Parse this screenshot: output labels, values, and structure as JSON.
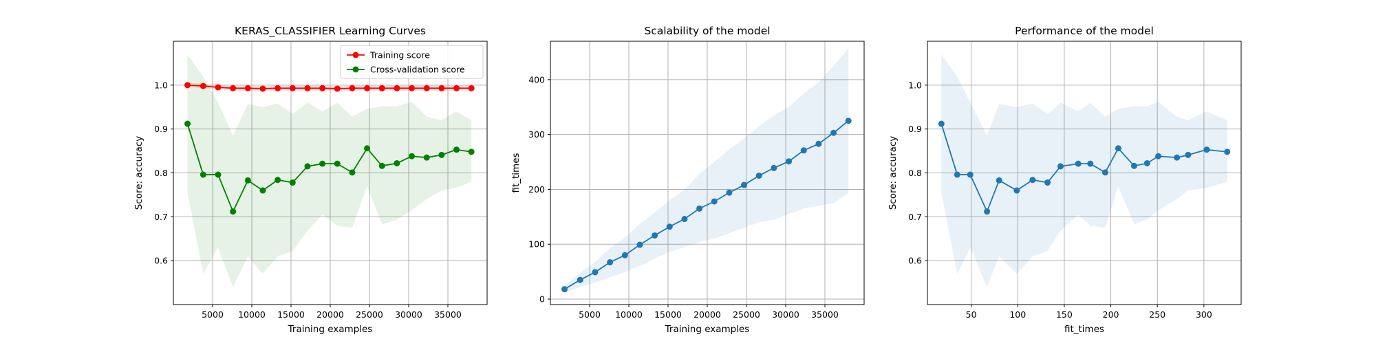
{
  "colors": {
    "train": "#ff0000",
    "cv": "#008000",
    "blue": "#1f77b4",
    "grid": "#b0b0b0"
  },
  "chart_data": [
    {
      "type": "line",
      "title": "KERAS_CLASSIFIER Learning Curves",
      "xlabel": "Training examples",
      "ylabel": "Score: accuracy",
      "xlim": [
        0,
        40000
      ],
      "ylim": [
        0.5,
        1.1
      ],
      "xticks": [
        5000,
        10000,
        15000,
        20000,
        25000,
        30000,
        35000
      ],
      "xtick_labels": [
        "5000",
        "10000",
        "15000",
        "20000",
        "25000",
        "30000",
        "35000"
      ],
      "yticks": [
        0.6,
        0.7,
        0.8,
        0.9,
        1.0
      ],
      "ytick_labels": [
        "0.6",
        "0.7",
        "0.8",
        "0.9",
        "1.0"
      ],
      "grid": true,
      "legend": "top-right",
      "x": [
        1800,
        3800,
        5700,
        7600,
        9500,
        11400,
        13300,
        15200,
        17100,
        19000,
        20900,
        22800,
        24700,
        26600,
        28500,
        30400,
        32300,
        34200,
        36100,
        38000
      ],
      "series": [
        {
          "name": "Training score",
          "color": "#ff0000",
          "values": [
            1.0,
            0.998,
            0.995,
            0.993,
            0.993,
            0.992,
            0.993,
            0.993,
            0.993,
            0.993,
            0.992,
            0.993,
            0.993,
            0.993,
            0.993,
            0.993,
            0.993,
            0.993,
            0.993,
            0.993
          ],
          "band_upper": [
            1.005,
            1.003,
            1.0,
            0.999,
            0.999,
            0.998,
            0.999,
            0.999,
            0.999,
            0.999,
            0.998,
            0.999,
            0.999,
            0.999,
            0.999,
            0.999,
            0.999,
            0.999,
            0.999,
            0.999
          ],
          "band_lower": [
            0.995,
            0.993,
            0.99,
            0.987,
            0.987,
            0.986,
            0.987,
            0.987,
            0.987,
            0.987,
            0.986,
            0.987,
            0.987,
            0.987,
            0.987,
            0.987,
            0.987,
            0.987,
            0.987,
            0.987
          ]
        },
        {
          "name": "Cross-validation score",
          "color": "#008000",
          "values": [
            0.912,
            0.796,
            0.796,
            0.712,
            0.783,
            0.76,
            0.784,
            0.778,
            0.815,
            0.821,
            0.821,
            0.801,
            0.856,
            0.816,
            0.822,
            0.838,
            0.835,
            0.841,
            0.853,
            0.848
          ],
          "band_upper": [
            1.07,
            1.02,
            0.96,
            0.885,
            0.957,
            0.95,
            0.958,
            0.934,
            0.96,
            0.94,
            0.96,
            0.928,
            0.946,
            0.952,
            0.952,
            0.962,
            0.928,
            0.92,
            0.94,
            0.92
          ],
          "band_lower": [
            0.755,
            0.57,
            0.63,
            0.54,
            0.61,
            0.57,
            0.61,
            0.622,
            0.668,
            0.705,
            0.68,
            0.675,
            0.77,
            0.683,
            0.694,
            0.715,
            0.74,
            0.76,
            0.766,
            0.78
          ]
        }
      ]
    },
    {
      "type": "line",
      "title": "Scalability of the model",
      "xlabel": "Training examples",
      "ylabel": "fit_times",
      "xlim": [
        0,
        40000
      ],
      "ylim": [
        -10,
        470
      ],
      "xticks": [
        5000,
        10000,
        15000,
        20000,
        25000,
        30000,
        35000
      ],
      "xtick_labels": [
        "5000",
        "10000",
        "15000",
        "20000",
        "25000",
        "30000",
        "35000"
      ],
      "yticks": [
        0,
        100,
        200,
        300,
        400
      ],
      "ytick_labels": [
        "0",
        "100",
        "200",
        "300",
        "400"
      ],
      "grid": true,
      "x": [
        1800,
        3800,
        5700,
        7600,
        9500,
        11400,
        13300,
        15200,
        17100,
        19000,
        20900,
        22800,
        24700,
        26600,
        28500,
        30400,
        32300,
        34200,
        36100,
        38000
      ],
      "series": [
        {
          "color": "#1f77b4",
          "values": [
            18,
            35,
            49,
            67,
            80,
            99,
            116,
            132,
            146,
            165,
            178,
            194,
            208,
            225,
            239,
            251,
            271,
            283,
            303,
            325
          ],
          "band_upper": [
            24,
            48,
            68,
            93,
            112,
            137,
            158,
            180,
            200,
            228,
            250,
            273,
            293,
            315,
            335,
            350,
            375,
            395,
            425,
            458
          ],
          "band_lower": [
            12,
            22,
            30,
            40,
            49,
            60,
            74,
            86,
            95,
            104,
            110,
            120,
            130,
            140,
            145,
            155,
            165,
            170,
            175,
            193
          ]
        }
      ]
    },
    {
      "type": "line",
      "title": "Performance of the model",
      "xlabel": "fit_times",
      "ylabel": "Score: accuracy",
      "xlim": [
        3,
        340
      ],
      "ylim": [
        0.5,
        1.1
      ],
      "xticks": [
        50,
        100,
        150,
        200,
        250,
        300
      ],
      "xtick_labels": [
        "50",
        "100",
        "150",
        "200",
        "250",
        "300"
      ],
      "yticks": [
        0.6,
        0.7,
        0.8,
        0.9,
        1.0
      ],
      "ytick_labels": [
        "0.6",
        "0.7",
        "0.8",
        "0.9",
        "1.0"
      ],
      "grid": true,
      "x": [
        18,
        35,
        49,
        67,
        80,
        99,
        116,
        132,
        146,
        165,
        178,
        194,
        208,
        225,
        239,
        251,
        271,
        283,
        303,
        325
      ],
      "series": [
        {
          "color": "#1f77b4",
          "values": [
            0.912,
            0.796,
            0.796,
            0.712,
            0.783,
            0.76,
            0.784,
            0.778,
            0.815,
            0.821,
            0.821,
            0.801,
            0.856,
            0.816,
            0.822,
            0.838,
            0.835,
            0.841,
            0.853,
            0.848
          ],
          "band_upper": [
            1.07,
            1.02,
            0.96,
            0.885,
            0.957,
            0.95,
            0.958,
            0.934,
            0.96,
            0.94,
            0.96,
            0.928,
            0.946,
            0.952,
            0.952,
            0.962,
            0.928,
            0.92,
            0.94,
            0.92
          ],
          "band_lower": [
            0.755,
            0.57,
            0.63,
            0.54,
            0.61,
            0.57,
            0.61,
            0.622,
            0.668,
            0.705,
            0.68,
            0.675,
            0.77,
            0.683,
            0.694,
            0.715,
            0.74,
            0.76,
            0.766,
            0.78
          ]
        }
      ]
    }
  ]
}
